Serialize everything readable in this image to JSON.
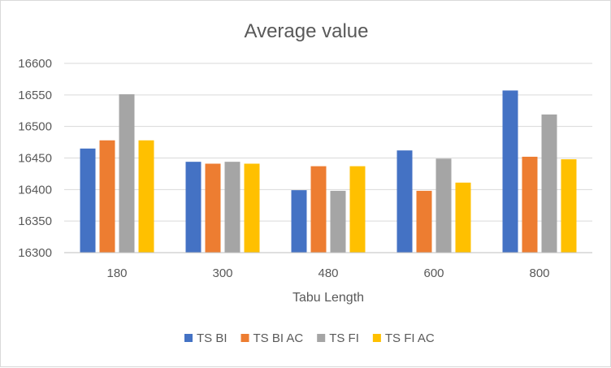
{
  "chart_data": {
    "type": "bar",
    "title": "Average value",
    "xlabel": "Tabu Length",
    "ylabel": "",
    "categories": [
      "180",
      "300",
      "480",
      "600",
      "800"
    ],
    "ylim": [
      16300,
      16600
    ],
    "yticks": [
      16300,
      16350,
      16400,
      16450,
      16500,
      16550,
      16600
    ],
    "grid": true,
    "legend_position": "bottom",
    "series": [
      {
        "name": "TS BI",
        "color": "#4472c4",
        "values": [
          16465,
          16444,
          16399,
          16462,
          16557
        ]
      },
      {
        "name": "TS BI AC",
        "color": "#ed7d31",
        "values": [
          16478,
          16441,
          16437,
          16398,
          16452
        ]
      },
      {
        "name": "TS FI",
        "color": "#a5a5a5",
        "values": [
          16551,
          16444,
          16398,
          16449,
          16519
        ]
      },
      {
        "name": "TS FI AC",
        "color": "#ffc000",
        "values": [
          16478,
          16441,
          16437,
          16411,
          16448
        ]
      }
    ]
  }
}
